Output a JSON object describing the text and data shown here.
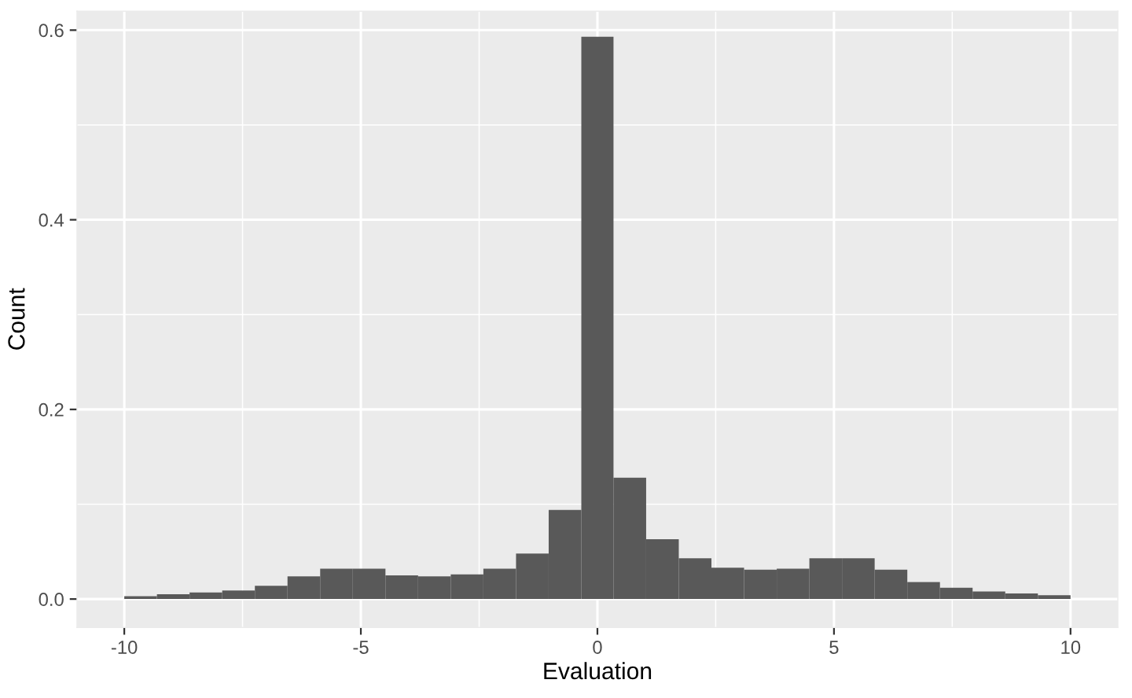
{
  "chart_data": {
    "type": "histogram",
    "xlabel": "Evaluation",
    "ylabel": "Count",
    "bins": [
      -10,
      -9.31,
      -8.62,
      -7.93,
      -7.24,
      -6.55,
      -5.86,
      -5.17,
      -4.48,
      -3.79,
      -3.1,
      -2.41,
      -1.72,
      -1.03,
      -0.34,
      0.34,
      1.03,
      1.72,
      2.41,
      3.1,
      3.79,
      4.48,
      5.17,
      5.86,
      6.55,
      7.24,
      7.93,
      8.62,
      9.31,
      10
    ],
    "values": [
      0.003,
      0.005,
      0.007,
      0.009,
      0.014,
      0.024,
      0.032,
      0.032,
      0.025,
      0.024,
      0.026,
      0.032,
      0.048,
      0.094,
      0.593,
      0.128,
      0.063,
      0.043,
      0.033,
      0.031,
      0.032,
      0.043,
      0.043,
      0.031,
      0.018,
      0.012,
      0.008,
      0.006,
      0.004
    ],
    "color": "#595959",
    "xlim": [
      -11,
      11
    ],
    "ylim": [
      -0.03,
      0.62
    ],
    "xticks": [
      -10,
      -5,
      0,
      5,
      10
    ],
    "yticks": [
      {
        "value": 0,
        "label": "0.0"
      },
      0.2,
      0.4,
      0.6
    ],
    "grid": true
  }
}
